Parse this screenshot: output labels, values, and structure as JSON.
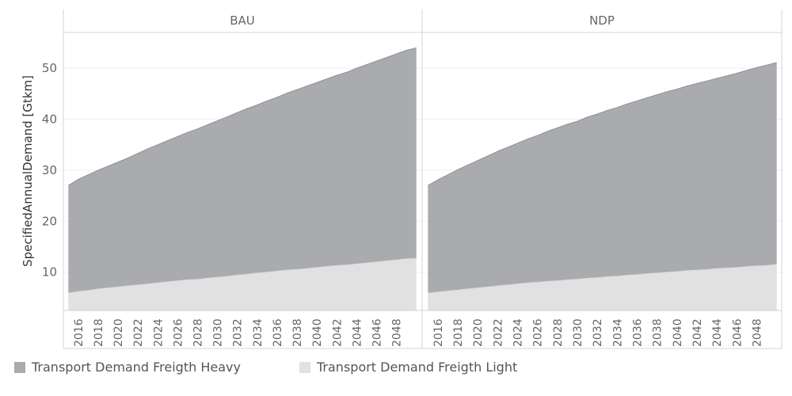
{
  "chart_data": {
    "type": "area",
    "stacked": true,
    "ylabel": "SpecifiedAnnualDemand [Gtkm]",
    "ylim": [
      2.5,
      57
    ],
    "yticks": [
      10,
      20,
      30,
      40,
      50
    ],
    "xlim": [
      2014.5,
      2050.5
    ],
    "xticks": [
      2016,
      2018,
      2020,
      2022,
      2024,
      2026,
      2028,
      2030,
      2032,
      2034,
      2036,
      2038,
      2040,
      2042,
      2044,
      2046,
      2048
    ],
    "x": [
      2015,
      2016,
      2017,
      2018,
      2019,
      2020,
      2021,
      2022,
      2023,
      2024,
      2025,
      2026,
      2027,
      2028,
      2029,
      2030,
      2031,
      2032,
      2033,
      2034,
      2035,
      2036,
      2037,
      2038,
      2039,
      2040,
      2041,
      2042,
      2043,
      2044,
      2045,
      2046,
      2047,
      2048,
      2049,
      2050
    ],
    "colors": {
      "Transport Demand Freigth Heavy": "#a9abaf",
      "Transport Demand Freigth Light": "#e1e1e1"
    },
    "panels": [
      {
        "name": "BAU",
        "series": [
          {
            "name": "Transport Demand Freigth Light",
            "values": [
              6.0,
              6.3,
              6.5,
              6.8,
              7.0,
              7.2,
              7.4,
              7.6,
              7.8,
              8.0,
              8.2,
              8.4,
              8.6,
              8.7,
              8.9,
              9.1,
              9.3,
              9.5,
              9.7,
              9.9,
              10.1,
              10.3,
              10.5,
              10.6,
              10.8,
              11.0,
              11.2,
              11.4,
              11.5,
              11.7,
              11.9,
              12.1,
              12.3,
              12.5,
              12.7,
              12.8
            ]
          },
          {
            "name": "Transport Demand Freigth Heavy",
            "values": [
              21.0,
              21.9,
              22.6,
              23.2,
              23.8,
              24.4,
              25.0,
              25.7,
              26.4,
              27.0,
              27.6,
              28.2,
              28.8,
              29.4,
              30.0,
              30.6,
              31.2,
              31.8,
              32.4,
              32.9,
              33.5,
              34.0,
              34.6,
              35.2,
              35.7,
              36.2,
              36.7,
              37.2,
              37.7,
              38.3,
              38.8,
              39.3,
              39.8,
              40.3,
              40.8,
              41.2
            ]
          }
        ]
      },
      {
        "name": "NDP",
        "series": [
          {
            "name": "Transport Demand Freigth Light",
            "values": [
              6.0,
              6.2,
              6.4,
              6.6,
              6.8,
              7.0,
              7.2,
              7.4,
              7.6,
              7.8,
              8.0,
              8.1,
              8.3,
              8.4,
              8.6,
              8.7,
              8.9,
              9.0,
              9.2,
              9.3,
              9.5,
              9.6,
              9.8,
              9.9,
              10.1,
              10.2,
              10.4,
              10.5,
              10.6,
              10.8,
              10.9,
              11.0,
              11.2,
              11.3,
              11.4,
              11.6
            ]
          },
          {
            "name": "Transport Demand Freigth Heavy",
            "values": [
              21.0,
              21.9,
              22.7,
              23.5,
              24.2,
              24.9,
              25.6,
              26.3,
              26.9,
              27.5,
              28.1,
              28.7,
              29.3,
              29.9,
              30.4,
              30.9,
              31.5,
              32.0,
              32.5,
              33.0,
              33.5,
              34.0,
              34.4,
              34.9,
              35.3,
              35.7,
              36.1,
              36.5,
              36.9,
              37.2,
              37.6,
              38.0,
              38.4,
              38.8,
              39.2,
              39.5
            ]
          }
        ]
      }
    ],
    "legend_position": "bottom-left"
  },
  "legend": {
    "items": [
      {
        "label": "Transport Demand Freigth Heavy",
        "color": "#a9abaf"
      },
      {
        "label": "Transport Demand Freigth Light",
        "color": "#e1e1e1"
      }
    ]
  }
}
